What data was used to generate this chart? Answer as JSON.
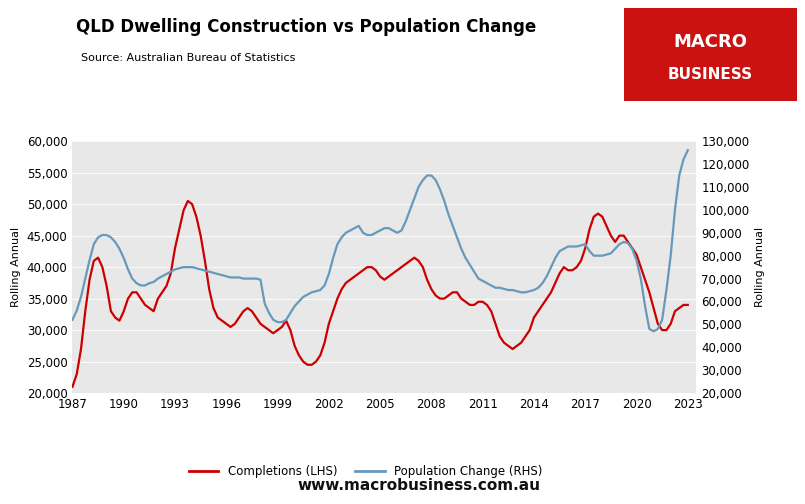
{
  "title": "QLD Dwelling Construction vs Population Change",
  "source": "Source: Australian Bureau of Statistics",
  "ylabel_left": "Rolling Annual",
  "ylabel_right": "Rolling Annual",
  "website": "www.macrobusiness.com.au",
  "background_color": "#e8e8e8",
  "fig_background": "#ffffff",
  "lhs_color": "#cc0000",
  "rhs_color": "#6699bb",
  "ylim_left": [
    20000,
    60000
  ],
  "ylim_right": [
    20000,
    130000
  ],
  "yticks_left": [
    20000,
    25000,
    30000,
    35000,
    40000,
    45000,
    50000,
    55000,
    60000
  ],
  "yticks_right": [
    20000,
    30000,
    40000,
    50000,
    60000,
    70000,
    80000,
    90000,
    100000,
    110000,
    120000,
    130000
  ],
  "xticks": [
    1987,
    1990,
    1993,
    1996,
    1999,
    2002,
    2005,
    2008,
    2011,
    2014,
    2017,
    2020,
    2023
  ],
  "xlim": [
    1987,
    2023.5
  ],
  "logo_color": "#cc1111",
  "logo_text1": "MACRO",
  "logo_text2": "BUSINESS",
  "completions_x": [
    1987.0,
    1987.25,
    1987.5,
    1987.75,
    1988.0,
    1988.25,
    1988.5,
    1988.75,
    1989.0,
    1989.25,
    1989.5,
    1989.75,
    1990.0,
    1990.25,
    1990.5,
    1990.75,
    1991.0,
    1991.25,
    1991.5,
    1991.75,
    1992.0,
    1992.25,
    1992.5,
    1992.75,
    1993.0,
    1993.25,
    1993.5,
    1993.75,
    1994.0,
    1994.25,
    1994.5,
    1994.75,
    1995.0,
    1995.25,
    1995.5,
    1995.75,
    1996.0,
    1996.25,
    1996.5,
    1996.75,
    1997.0,
    1997.25,
    1997.5,
    1997.75,
    1998.0,
    1998.25,
    1998.5,
    1998.75,
    1999.0,
    1999.25,
    1999.5,
    1999.75,
    2000.0,
    2000.25,
    2000.5,
    2000.75,
    2001.0,
    2001.25,
    2001.5,
    2001.75,
    2002.0,
    2002.25,
    2002.5,
    2002.75,
    2003.0,
    2003.25,
    2003.5,
    2003.75,
    2004.0,
    2004.25,
    2004.5,
    2004.75,
    2005.0,
    2005.25,
    2005.5,
    2005.75,
    2006.0,
    2006.25,
    2006.5,
    2006.75,
    2007.0,
    2007.25,
    2007.5,
    2007.75,
    2008.0,
    2008.25,
    2008.5,
    2008.75,
    2009.0,
    2009.25,
    2009.5,
    2009.75,
    2010.0,
    2010.25,
    2010.5,
    2010.75,
    2011.0,
    2011.25,
    2011.5,
    2011.75,
    2012.0,
    2012.25,
    2012.5,
    2012.75,
    2013.0,
    2013.25,
    2013.5,
    2013.75,
    2014.0,
    2014.25,
    2014.5,
    2014.75,
    2015.0,
    2015.25,
    2015.5,
    2015.75,
    2016.0,
    2016.25,
    2016.5,
    2016.75,
    2017.0,
    2017.25,
    2017.5,
    2017.75,
    2018.0,
    2018.25,
    2018.5,
    2018.75,
    2019.0,
    2019.25,
    2019.5,
    2019.75,
    2020.0,
    2020.25,
    2020.5,
    2020.75,
    2021.0,
    2021.25,
    2021.5,
    2021.75,
    2022.0,
    2022.25,
    2022.5,
    2022.75,
    2023.0
  ],
  "completions_y": [
    21000,
    23000,
    27000,
    33000,
    38000,
    41000,
    41500,
    40000,
    37000,
    33000,
    32000,
    31500,
    33000,
    35000,
    36000,
    36000,
    35000,
    34000,
    33500,
    33000,
    35000,
    36000,
    37000,
    39000,
    43000,
    46000,
    49000,
    50500,
    50000,
    48000,
    45000,
    41000,
    36500,
    33500,
    32000,
    31500,
    31000,
    30500,
    31000,
    32000,
    33000,
    33500,
    33000,
    32000,
    31000,
    30500,
    30000,
    29500,
    30000,
    30500,
    31500,
    30000,
    27500,
    26000,
    25000,
    24500,
    24500,
    25000,
    26000,
    28000,
    31000,
    33000,
    35000,
    36500,
    37500,
    38000,
    38500,
    39000,
    39500,
    40000,
    40000,
    39500,
    38500,
    38000,
    38500,
    39000,
    39500,
    40000,
    40500,
    41000,
    41500,
    41000,
    40000,
    38000,
    36500,
    35500,
    35000,
    35000,
    35500,
    36000,
    36000,
    35000,
    34500,
    34000,
    34000,
    34500,
    34500,
    34000,
    33000,
    31000,
    29000,
    28000,
    27500,
    27000,
    27500,
    28000,
    29000,
    30000,
    32000,
    33000,
    34000,
    35000,
    36000,
    37500,
    39000,
    40000,
    39500,
    39500,
    40000,
    41000,
    43000,
    46000,
    48000,
    48500,
    48000,
    46500,
    45000,
    44000,
    45000,
    45000,
    44000,
    43000,
    42000,
    40000,
    38000,
    36000,
    33500,
    31000,
    30000,
    30000,
    31000,
    33000,
    33500,
    34000,
    34000
  ],
  "population_x": [
    1987.0,
    1987.25,
    1987.5,
    1987.75,
    1988.0,
    1988.25,
    1988.5,
    1988.75,
    1989.0,
    1989.25,
    1989.5,
    1989.75,
    1990.0,
    1990.25,
    1990.5,
    1990.75,
    1991.0,
    1991.25,
    1991.5,
    1991.75,
    1992.0,
    1992.25,
    1992.5,
    1992.75,
    1993.0,
    1993.25,
    1993.5,
    1993.75,
    1994.0,
    1994.25,
    1994.5,
    1994.75,
    1995.0,
    1995.25,
    1995.5,
    1995.75,
    1996.0,
    1996.25,
    1996.5,
    1996.75,
    1997.0,
    1997.25,
    1997.5,
    1997.75,
    1998.0,
    1998.25,
    1998.5,
    1998.75,
    1999.0,
    1999.25,
    1999.5,
    1999.75,
    2000.0,
    2000.25,
    2000.5,
    2000.75,
    2001.0,
    2001.25,
    2001.5,
    2001.75,
    2002.0,
    2002.25,
    2002.5,
    2002.75,
    2003.0,
    2003.25,
    2003.5,
    2003.75,
    2004.0,
    2004.25,
    2004.5,
    2004.75,
    2005.0,
    2005.25,
    2005.5,
    2005.75,
    2006.0,
    2006.25,
    2006.5,
    2006.75,
    2007.0,
    2007.25,
    2007.5,
    2007.75,
    2008.0,
    2008.25,
    2008.5,
    2008.75,
    2009.0,
    2009.25,
    2009.5,
    2009.75,
    2010.0,
    2010.25,
    2010.5,
    2010.75,
    2011.0,
    2011.25,
    2011.5,
    2011.75,
    2012.0,
    2012.25,
    2012.5,
    2012.75,
    2013.0,
    2013.25,
    2013.5,
    2013.75,
    2014.0,
    2014.25,
    2014.5,
    2014.75,
    2015.0,
    2015.25,
    2015.5,
    2015.75,
    2016.0,
    2016.25,
    2016.5,
    2016.75,
    2017.0,
    2017.25,
    2017.5,
    2017.75,
    2018.0,
    2018.25,
    2018.5,
    2018.75,
    2019.0,
    2019.25,
    2019.5,
    2019.75,
    2020.0,
    2020.25,
    2020.5,
    2020.75,
    2021.0,
    2021.25,
    2021.5,
    2021.75,
    2022.0,
    2022.25,
    2022.5,
    2022.75,
    2023.0
  ],
  "population_y": [
    52000,
    56000,
    62000,
    70000,
    78000,
    85000,
    88000,
    89000,
    89000,
    88000,
    86000,
    83000,
    79000,
    74000,
    70000,
    68000,
    67000,
    67000,
    68000,
    68500,
    70000,
    71000,
    72000,
    73000,
    74000,
    74500,
    75000,
    75000,
    75000,
    74500,
    74000,
    73500,
    73000,
    72500,
    72000,
    71500,
    71000,
    70500,
    70500,
    70500,
    70000,
    70000,
    70000,
    70000,
    69500,
    59000,
    55000,
    52000,
    51000,
    51000,
    52000,
    55000,
    58000,
    60000,
    62000,
    63000,
    64000,
    64500,
    65000,
    67000,
    72000,
    79000,
    85000,
    88000,
    90000,
    91000,
    92000,
    93000,
    90000,
    89000,
    89000,
    90000,
    91000,
    92000,
    92000,
    91000,
    90000,
    91000,
    95000,
    100000,
    105000,
    110000,
    113000,
    115000,
    115000,
    113000,
    109000,
    104000,
    98000,
    93000,
    88000,
    83000,
    79000,
    76000,
    73000,
    70000,
    69000,
    68000,
    67000,
    66000,
    66000,
    65500,
    65000,
    65000,
    64500,
    64000,
    64000,
    64500,
    65000,
    66000,
    68000,
    71000,
    75000,
    79000,
    82000,
    83000,
    84000,
    84000,
    84000,
    84500,
    85000,
    82000,
    80000,
    80000,
    80000,
    80500,
    81000,
    83000,
    85000,
    86000,
    85500,
    83000,
    78000,
    70000,
    58000,
    48000,
    47000,
    48000,
    52000,
    65000,
    80000,
    100000,
    115000,
    122000,
    126000
  ]
}
